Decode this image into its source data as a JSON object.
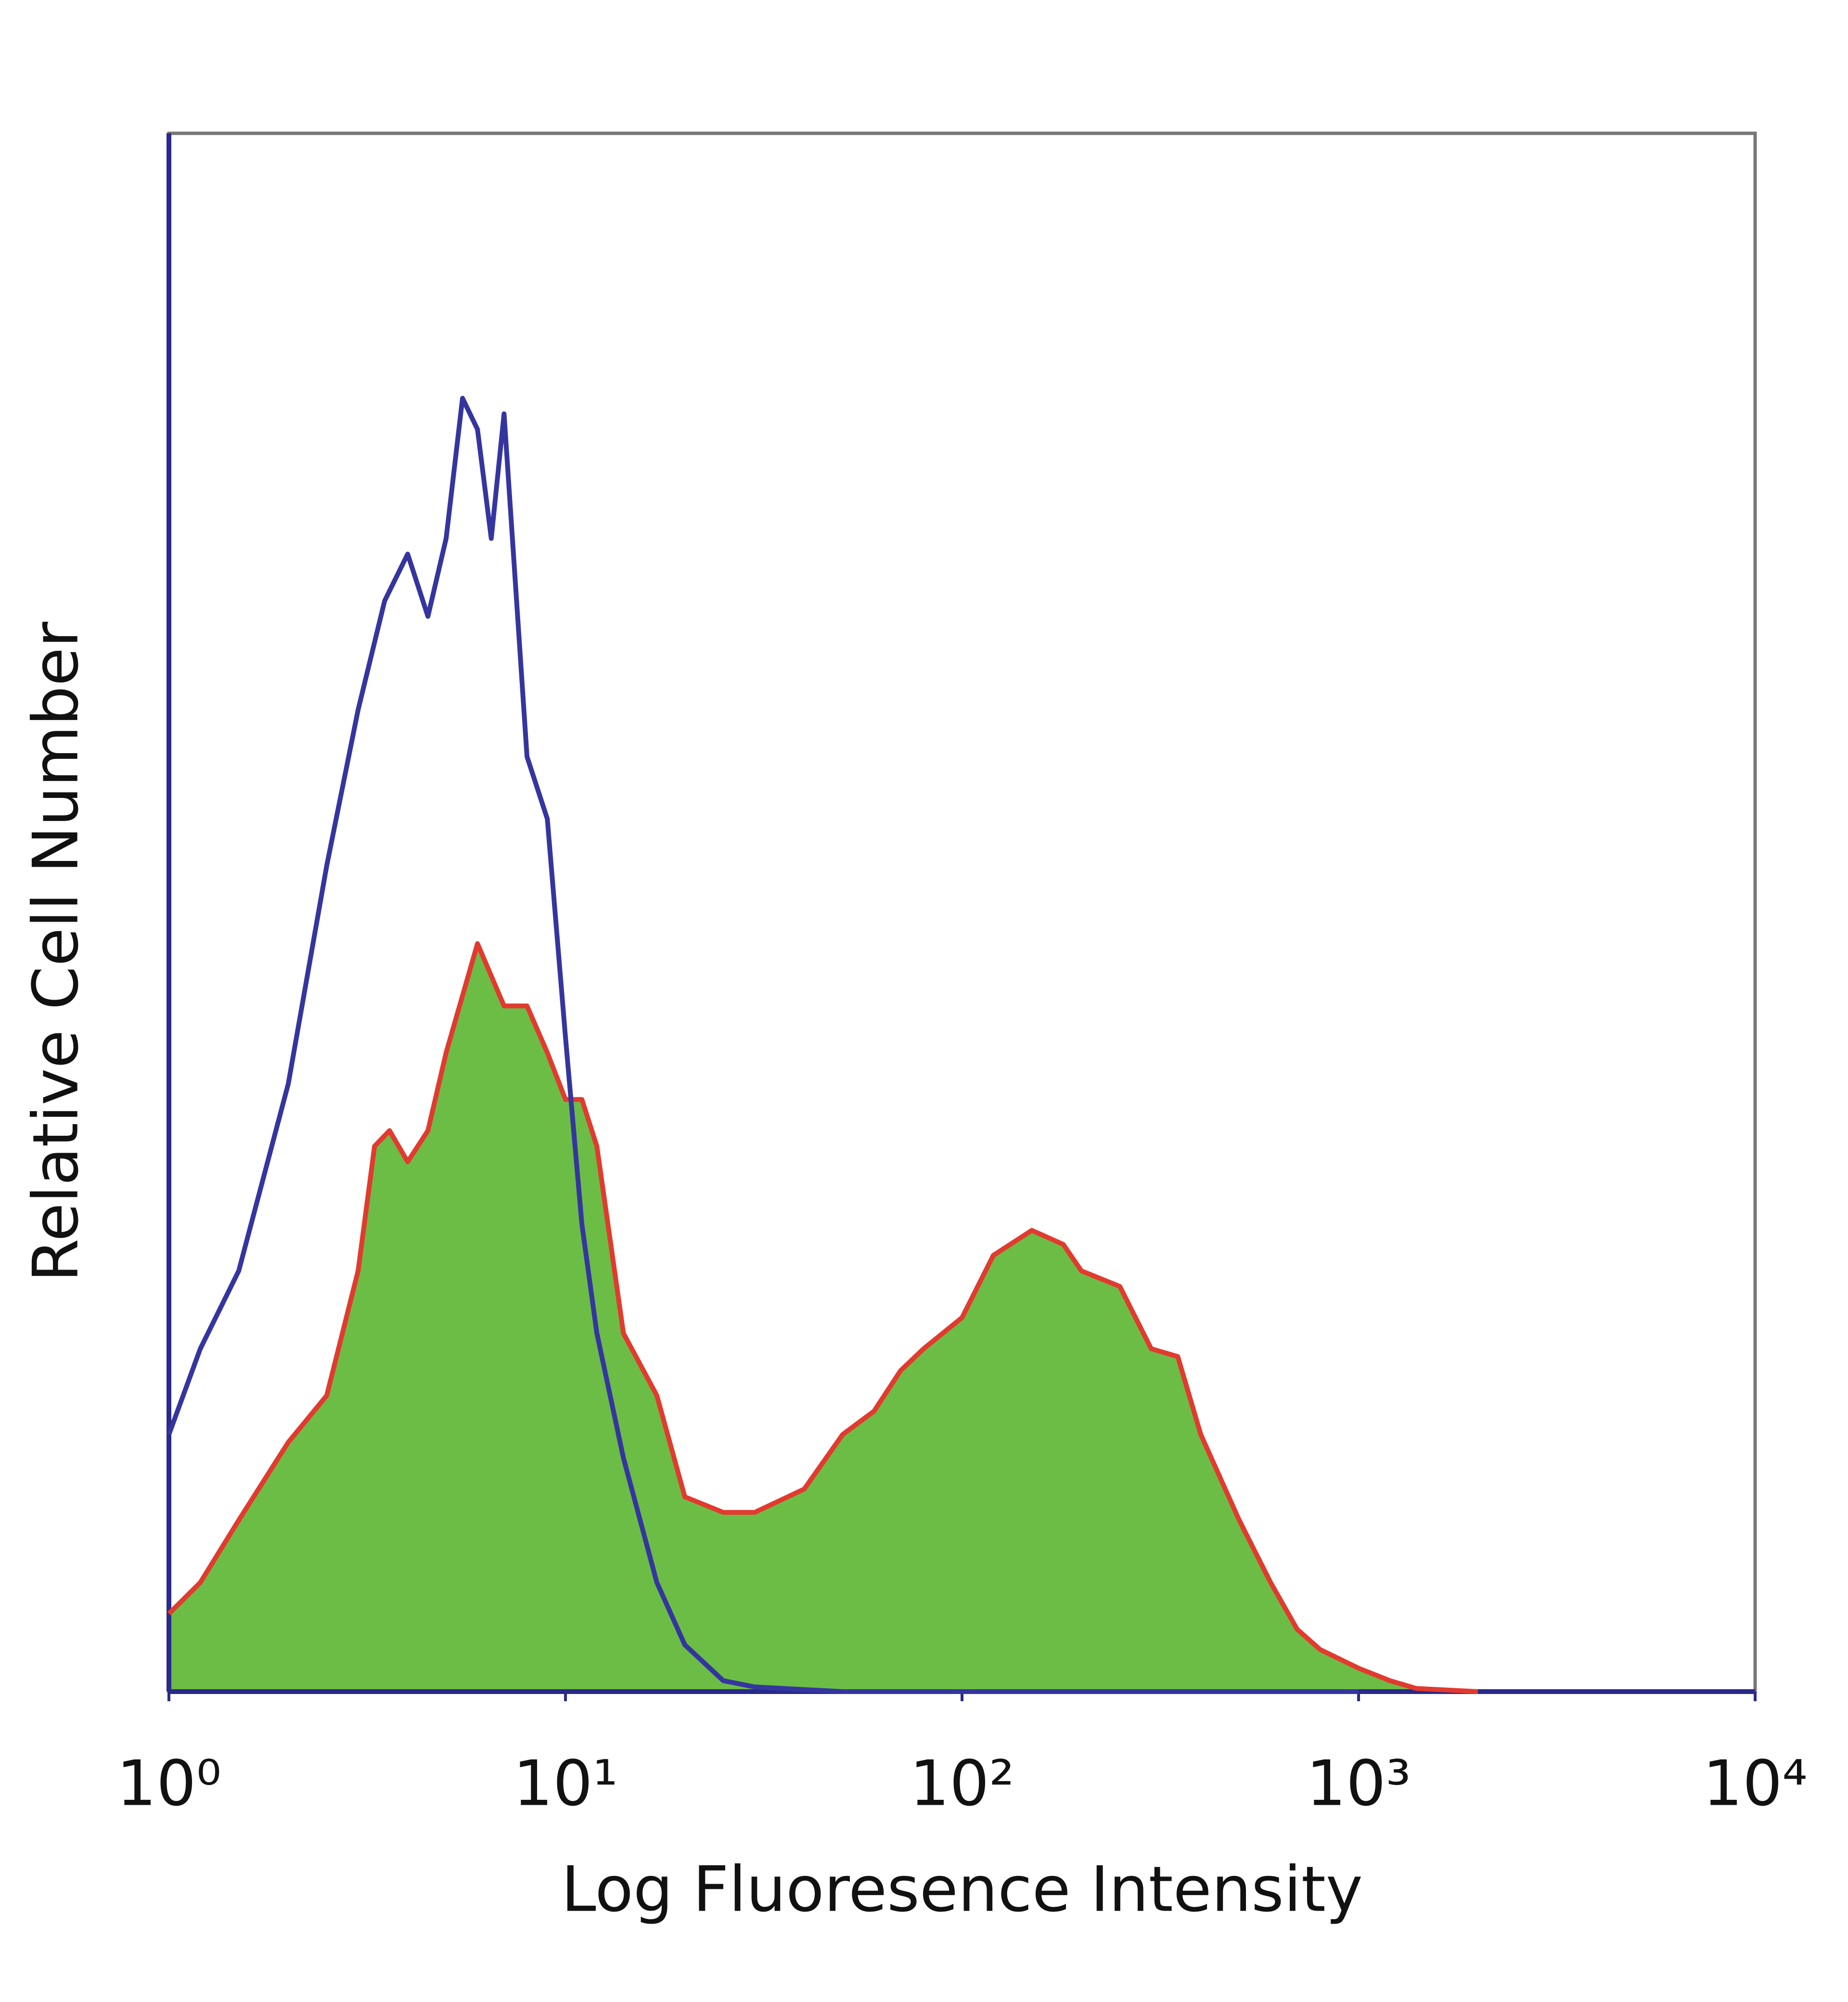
{
  "chart_data": {
    "type": "line",
    "xscale": "log",
    "x_label": "Log Fluoresence Intensity",
    "y_label": "Relative Cell Number",
    "xlim": [
      1,
      10000
    ],
    "ylim": [
      0,
      100
    ],
    "xticks": [
      {
        "value": 1,
        "label": "10⁰"
      },
      {
        "value": 10,
        "label": "10¹"
      },
      {
        "value": 100,
        "label": "10²"
      },
      {
        "value": 1000,
        "label": "10³"
      },
      {
        "value": 10000,
        "label": "10⁴"
      }
    ],
    "series": [
      {
        "color": "#e23a2e",
        "fill": "#6cbd45",
        "x": [
          1,
          1.2,
          1.5,
          2,
          2.5,
          3,
          3.3,
          3.6,
          4,
          4.5,
          5,
          6,
          7,
          8,
          9,
          10,
          11,
          12,
          14,
          17,
          20,
          25,
          30,
          40,
          50,
          60,
          70,
          80,
          100,
          120,
          150,
          180,
          200,
          250,
          300,
          350,
          400,
          500,
          600,
          700,
          800,
          1000,
          1200,
          1400,
          2000
        ],
        "values": [
          5,
          7,
          11,
          16,
          19,
          27,
          35,
          36,
          34,
          36,
          41,
          48,
          44,
          44,
          41,
          38,
          38,
          35,
          23,
          19,
          12.5,
          11.5,
          11.5,
          13,
          16.5,
          18,
          20.6,
          22,
          24,
          28,
          29.6,
          28.7,
          27,
          26,
          22,
          21.5,
          16.5,
          11,
          7,
          4,
          2.7,
          1.5,
          0.7,
          0.2,
          0
        ]
      },
      {
        "color": "#3535a0",
        "x": [
          1,
          1.2,
          1.5,
          2,
          2.5,
          3,
          3.5,
          4,
          4.5,
          5,
          5.5,
          6,
          6.5,
          7,
          8,
          9,
          10,
          11,
          12,
          14,
          17,
          20,
          25,
          30,
          50,
          100,
          1000
        ],
        "values": [
          16.5,
          22,
          27,
          39,
          53,
          63,
          70,
          73,
          69,
          74,
          83,
          81,
          74,
          82,
          60,
          56,
          42,
          30,
          23,
          15,
          7,
          3,
          0.7,
          0.3,
          0,
          0,
          0
        ]
      }
    ]
  }
}
